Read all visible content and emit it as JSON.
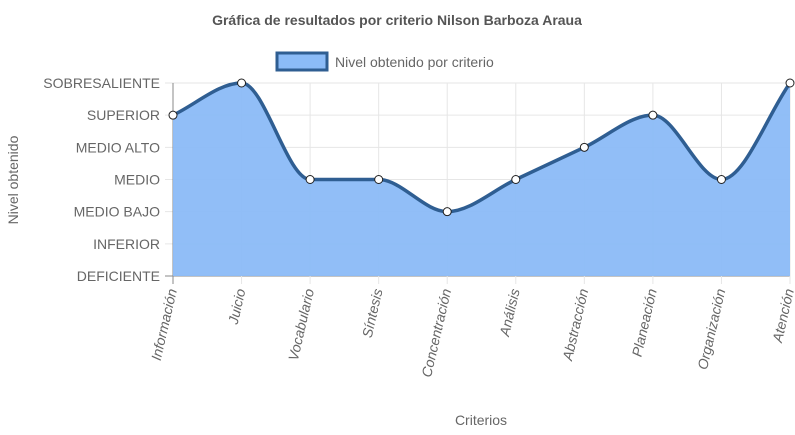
{
  "chart_data": {
    "type": "area",
    "title": "Gráfica de resultados por criterio Nilson Barboza Araua",
    "xlabel": "Criterios",
    "ylabel": "Nivel obtenido",
    "levels": [
      "DEFICIENTE",
      "INFERIOR",
      "MEDIO BAJO",
      "MEDIO",
      "MEDIO ALTO",
      "SUPERIOR",
      "SOBRESALIENTE"
    ],
    "categories": [
      "Información",
      "Juicio",
      "Vocabulario",
      "Síntesis",
      "Concentración",
      "Análisis",
      "Abstracción",
      "Planeación",
      "Organización",
      "Atención"
    ],
    "series": [
      {
        "name": "Nivel obtenido por criterio",
        "values": [
          "SUPERIOR",
          "SOBRESALIENTE",
          "MEDIO",
          "MEDIO",
          "MEDIO BAJO",
          "MEDIO",
          "MEDIO ALTO",
          "SUPERIOR",
          "MEDIO",
          "SOBRESALIENTE"
        ]
      }
    ],
    "legend_position": "top",
    "grid": true,
    "colors": {
      "fill": "#8bbbf7",
      "line": "#2f5e92",
      "point_fill": "#ffffff",
      "grid": "#e6e6e6",
      "axis": "#888888"
    }
  }
}
